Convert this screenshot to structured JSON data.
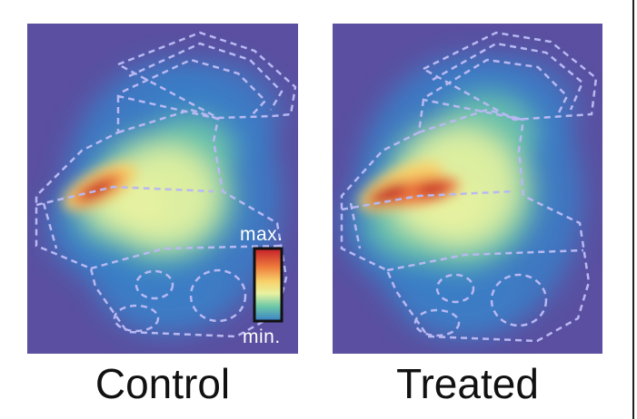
{
  "panels": {
    "left": {
      "label": "Control"
    },
    "right": {
      "label": "Treated"
    }
  },
  "colorbar": {
    "max_label": "max.",
    "min_label": "min."
  },
  "colors": {
    "background": "#5a4fa0",
    "outline": "#b8b8f2",
    "colormap": [
      "#3a7fc8",
      "#6cc8a8",
      "#e8f2a0",
      "#f7d06a",
      "#ee7a3c",
      "#c41e2a"
    ]
  }
}
